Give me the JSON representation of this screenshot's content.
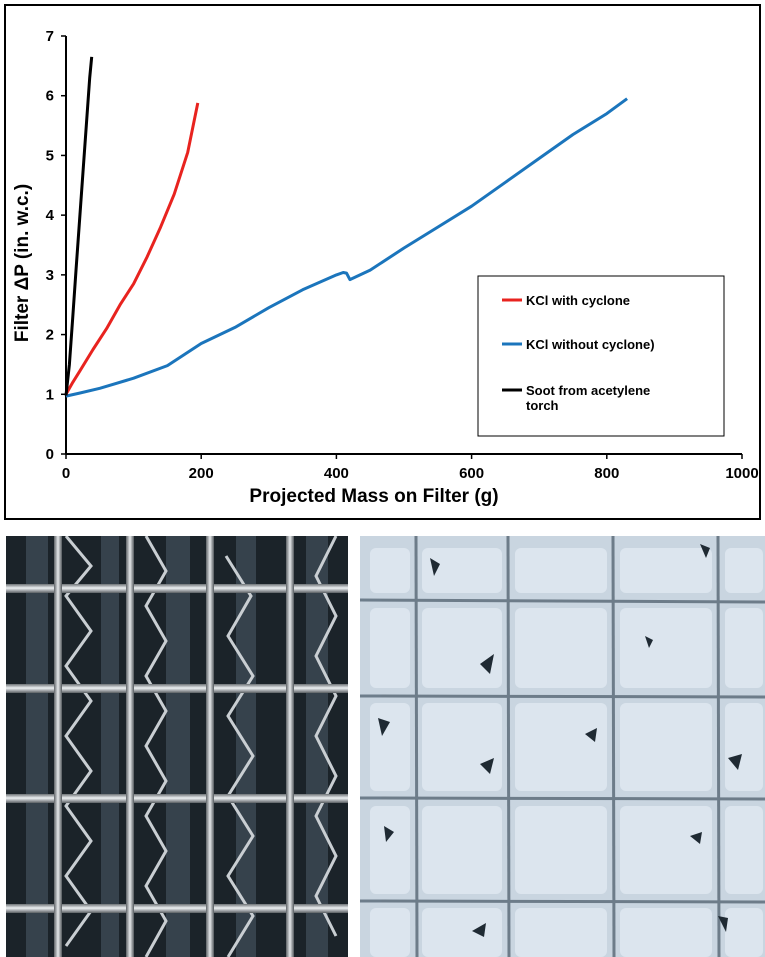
{
  "chart_data": {
    "type": "line",
    "title": "",
    "xlabel": "Projected Mass on Filter (g)",
    "ylabel": "Filter ΔP (in. w.c.)",
    "xlim": [
      0,
      1000
    ],
    "ylim": [
      0,
      7
    ],
    "x_ticks": [
      0,
      200,
      400,
      600,
      800,
      1000
    ],
    "y_ticks": [
      0,
      1,
      2,
      3,
      4,
      5,
      6,
      7
    ],
    "grid": false,
    "legend_position": "right",
    "series": [
      {
        "name": "KCl with cyclone",
        "color": "#e8231f",
        "points": [
          [
            0,
            1.0
          ],
          [
            5,
            1.1
          ],
          [
            10,
            1.2
          ],
          [
            20,
            1.38
          ],
          [
            40,
            1.75
          ],
          [
            60,
            2.1
          ],
          [
            80,
            2.5
          ],
          [
            100,
            2.85
          ],
          [
            120,
            3.3
          ],
          [
            140,
            3.8
          ],
          [
            160,
            4.35
          ],
          [
            180,
            5.05
          ],
          [
            195,
            5.88
          ]
        ]
      },
      {
        "name": "KCl without cyclone)",
        "color": "#1b75bc",
        "points": [
          [
            0,
            0.97
          ],
          [
            20,
            1.02
          ],
          [
            50,
            1.1
          ],
          [
            100,
            1.27
          ],
          [
            150,
            1.48
          ],
          [
            200,
            1.85
          ],
          [
            250,
            2.12
          ],
          [
            300,
            2.45
          ],
          [
            350,
            2.75
          ],
          [
            400,
            3.0
          ],
          [
            410,
            3.04
          ],
          [
            415,
            3.03
          ],
          [
            420,
            2.92
          ],
          [
            450,
            3.08
          ],
          [
            500,
            3.45
          ],
          [
            550,
            3.8
          ],
          [
            600,
            4.15
          ],
          [
            650,
            4.55
          ],
          [
            700,
            4.95
          ],
          [
            750,
            5.35
          ],
          [
            800,
            5.7
          ],
          [
            830,
            5.95
          ]
        ]
      },
      {
        "name": "Soot from acetylene torch",
        "color": "#000000",
        "points": [
          [
            0,
            0.98
          ],
          [
            5,
            1.5
          ],
          [
            10,
            2.3
          ],
          [
            15,
            3.1
          ],
          [
            20,
            3.9
          ],
          [
            25,
            4.7
          ],
          [
            30,
            5.5
          ],
          [
            35,
            6.3
          ],
          [
            38,
            6.65
          ]
        ]
      }
    ]
  },
  "photos": {
    "left_icon": "clean-metal-filter-grid-photo-icon",
    "right_icon": "dust-loaded-filter-grid-photo-icon"
  }
}
